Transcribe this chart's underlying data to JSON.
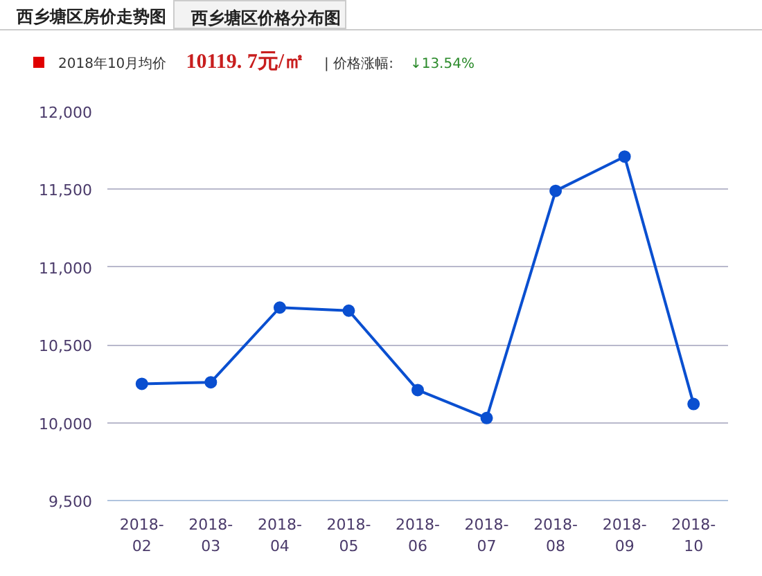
{
  "chart_data": {
    "type": "line",
    "annotations": [
      "西乡塘区房价走势图",
      "西乡塘区价格分布图",
      "2018年10月均价",
      "10119. 7元/㎡",
      "| 价格涨幅:",
      "↓13.54%"
    ],
    "categories": [
      "2018-02",
      "2018-03",
      "2018-04",
      "2018-05",
      "2018-06",
      "2018-07",
      "2018-08",
      "2018-09",
      "2018-10"
    ],
    "series": [
      {
        "color": "#0a4fd0",
        "values": [
          10250,
          10260,
          10740,
          10720,
          10210,
          10030,
          11490,
          11710,
          10120
        ]
      }
    ],
    "ylim": [
      9500,
      12000
    ],
    "yticks": [
      {
        "value": 9500,
        "label": "9,500"
      },
      {
        "value": 10000,
        "label": "10,000"
      },
      {
        "value": 10500,
        "label": "10,500"
      },
      {
        "value": 11000,
        "label": "11,000"
      },
      {
        "value": 11500,
        "label": "11,500"
      },
      {
        "value": 12000,
        "label": "12,000"
      }
    ],
    "grid": "y",
    "marker": "circle",
    "line_style": "solid"
  }
}
